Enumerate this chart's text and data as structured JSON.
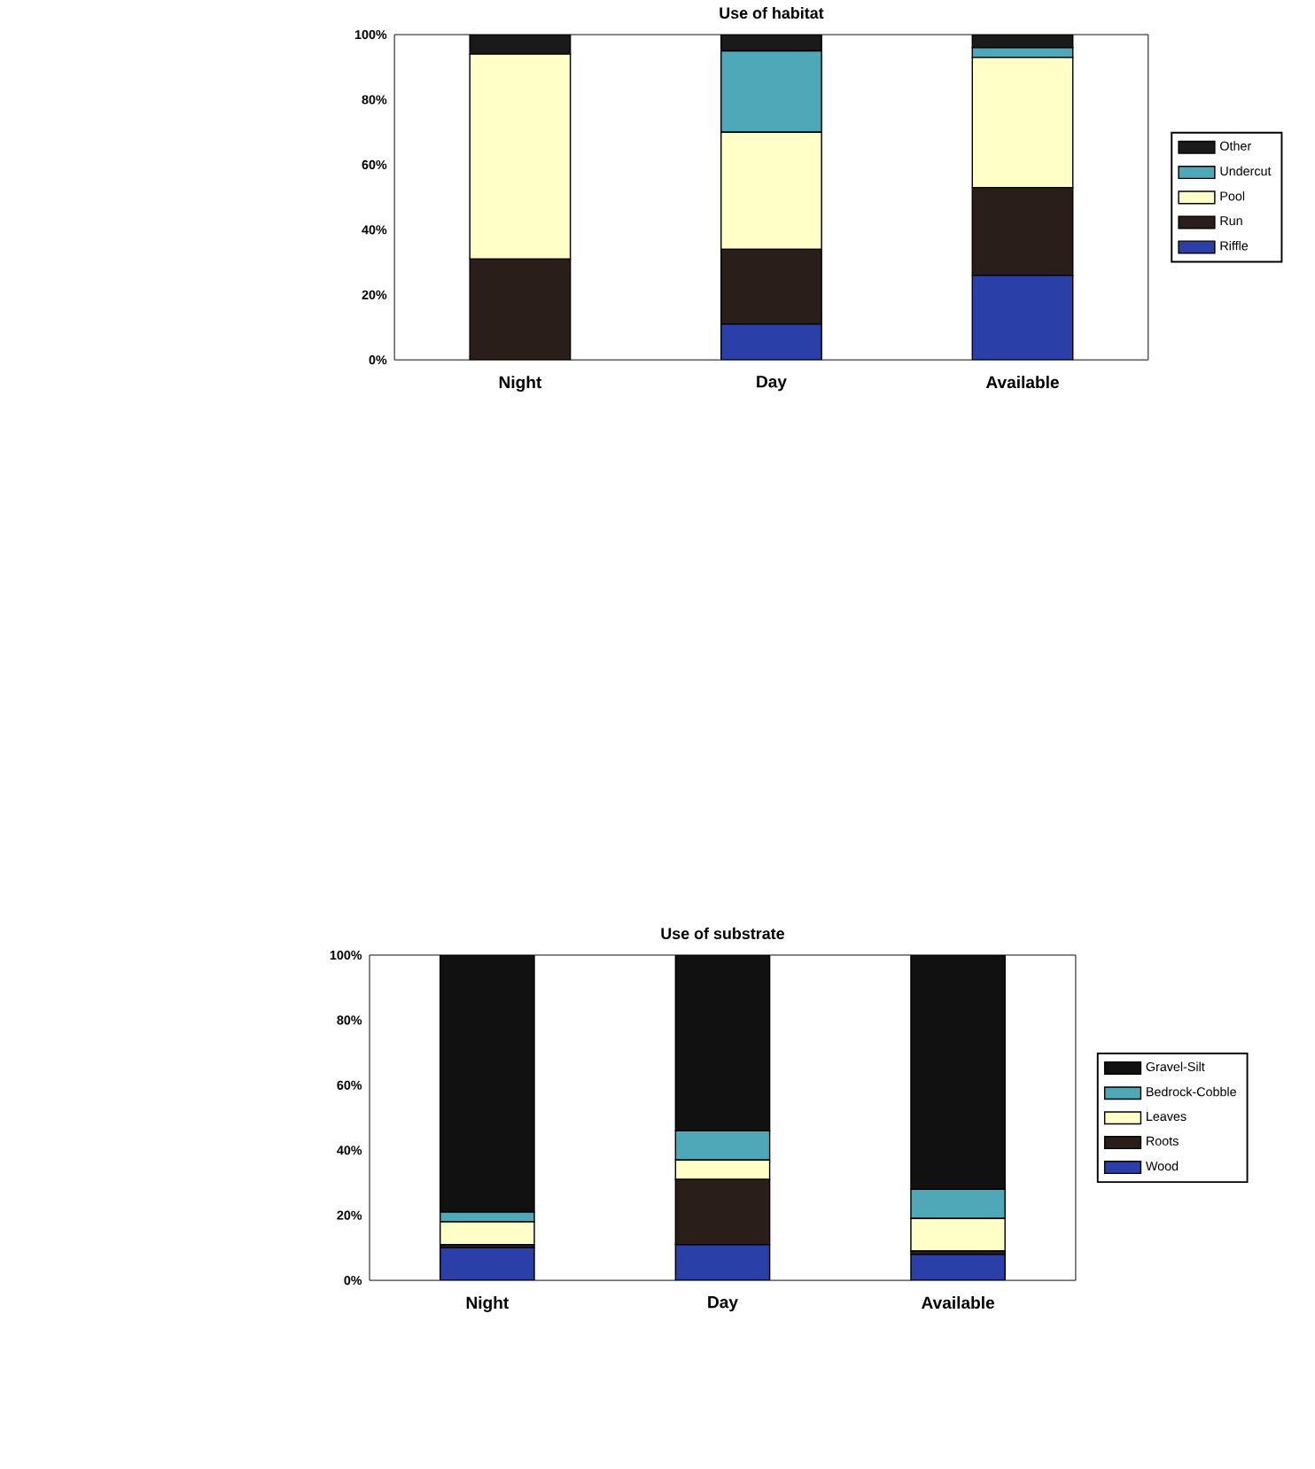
{
  "chart_data": [
    {
      "type": "bar",
      "title": "Use of habitat",
      "categories": [
        "Night",
        "Day",
        "Available"
      ],
      "stacked": true,
      "legend": "right",
      "ylim": [
        0,
        100
      ],
      "yticks": [
        {
          "value": 0,
          "label": "0%"
        },
        {
          "value": 20,
          "label": "20%"
        },
        {
          "value": 40,
          "label": "40%"
        },
        {
          "value": 60,
          "label": "60%"
        },
        {
          "value": 80,
          "label": "80%"
        },
        {
          "value": 100,
          "label": "100%"
        }
      ],
      "series": [
        {
          "name": "Riffle",
          "color": "#2a3fa8",
          "values": [
            0,
            11,
            26
          ]
        },
        {
          "name": "Run",
          "color": "#2a1e1a",
          "values": [
            31,
            23,
            27
          ]
        },
        {
          "name": "Pool",
          "color": "#ffffc8",
          "values": [
            63,
            36,
            40
          ]
        },
        {
          "name": "Undercut",
          "color": "#4fa8b8",
          "values": [
            0,
            25,
            3
          ]
        },
        {
          "name": "Other",
          "color": "#1a1a1a",
          "values": [
            6,
            5,
            4
          ]
        }
      ]
    },
    {
      "type": "bar",
      "title": "Use of substrate",
      "categories": [
        "Night",
        "Day",
        "Available"
      ],
      "stacked": true,
      "legend": "right",
      "ylim": [
        0,
        100
      ],
      "yticks": [
        {
          "value": 0,
          "label": "0%"
        },
        {
          "value": 20,
          "label": "20%"
        },
        {
          "value": 40,
          "label": "40%"
        },
        {
          "value": 60,
          "label": "60%"
        },
        {
          "value": 80,
          "label": "80%"
        },
        {
          "value": 100,
          "label": "100%"
        }
      ],
      "series": [
        {
          "name": "Wood",
          "color": "#2a3fa8",
          "values": [
            10,
            11,
            8
          ]
        },
        {
          "name": "Roots",
          "color": "#2a1e1a",
          "values": [
            1,
            20,
            1
          ]
        },
        {
          "name": "Leaves",
          "color": "#ffffc8",
          "values": [
            7,
            6,
            10
          ]
        },
        {
          "name": "Bedrock-Cobble",
          "color": "#4fa8b8",
          "values": [
            3,
            9,
            9
          ]
        },
        {
          "name": "Gravel-Silt",
          "color": "#111111",
          "values": [
            79,
            54,
            72
          ]
        }
      ]
    }
  ]
}
